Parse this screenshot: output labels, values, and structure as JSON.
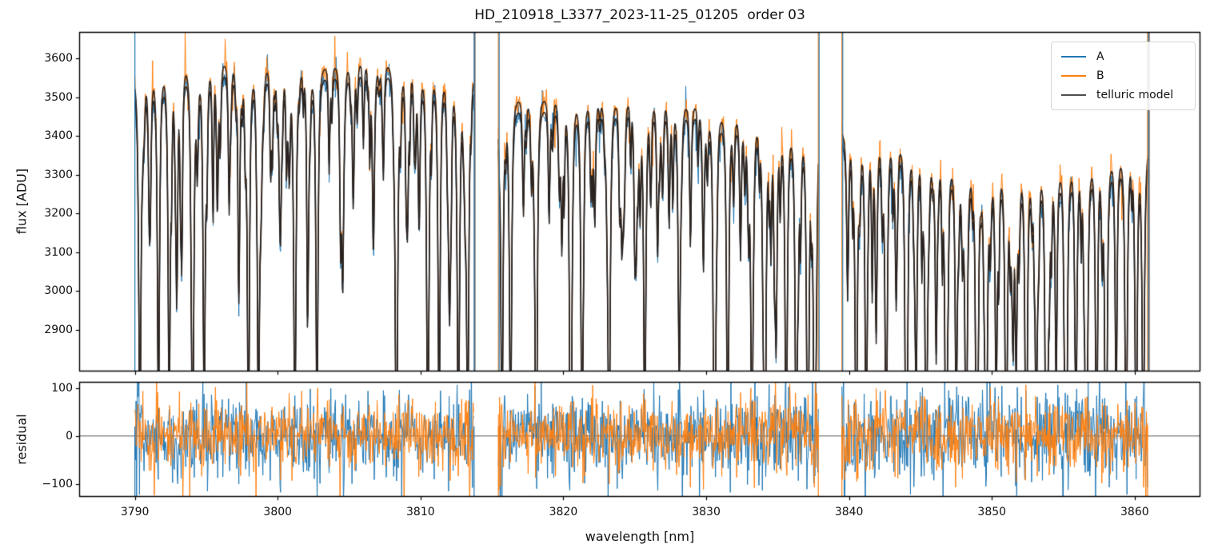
{
  "chart_data": {
    "type": "line",
    "title": "HD_210918_L3377_2023-11-25_01205  order 03",
    "xlabel": "wavelength [nm]",
    "xlim": [
      3786.1,
      3864.6
    ],
    "xticks": [
      3790,
      3800,
      3810,
      3820,
      3830,
      3840,
      3850,
      3860
    ],
    "panels": [
      {
        "ylabel": "flux [ADU]",
        "ylim": [
          2793,
          3668
        ],
        "yticks": [
          2900,
          3000,
          3100,
          3200,
          3300,
          3400,
          3500,
          3600
        ],
        "zeroline": false
      },
      {
        "ylabel": "residual",
        "ylim": [
          -127,
          113
        ],
        "yticks": [
          -100,
          0,
          100
        ],
        "zeroline": true
      }
    ],
    "legend": [
      {
        "label": "A",
        "color": "#1f77b4"
      },
      {
        "label": "B",
        "color": "#ff7f0e"
      },
      {
        "label": "telluric model",
        "color": "#4d4d4d"
      }
    ],
    "colors": {
      "A": "#1f77b4",
      "B": "#ff7f0e",
      "model_plot": "#2a2320",
      "zero_line": "#404040",
      "spine": "#000000"
    },
    "series_offsets": {
      "A": -14,
      "B": 14
    },
    "model_floor": 2520,
    "noise": {
      "flux_sigma": [
        20,
        20,
        26
      ],
      "flux_spike_p": 0.03,
      "residual_sigma_A": 36,
      "residual_sigma_B": 29,
      "residual_spike_p": 0.025
    },
    "weak_lines": {
      "spacing_nm": 0.32,
      "depth_range": [
        40,
        260
      ],
      "width_range": [
        0.05,
        0.09
      ],
      "seed": 777
    },
    "segments": [
      {
        "x_start": 3790.0,
        "x_end": 3813.75,
        "continuum": [
          [
            3790.0,
            3545
          ],
          [
            3791.5,
            3565
          ],
          [
            3793.5,
            3585
          ],
          [
            3795.5,
            3590
          ],
          [
            3797.5,
            3580
          ],
          [
            3800.5,
            3582
          ],
          [
            3803.0,
            3575
          ],
          [
            3806.0,
            3590
          ],
          [
            3808.0,
            3585
          ],
          [
            3810.0,
            3570
          ],
          [
            3812.0,
            3560
          ],
          [
            3813.75,
            3550
          ]
        ],
        "major_lines": [
          [
            3790.35,
            950,
            0.1
          ],
          [
            3791.0,
            300,
            0.08
          ],
          [
            3791.65,
            900,
            0.1
          ],
          [
            3792.4,
            880,
            0.1
          ],
          [
            3793.3,
            250,
            0.07
          ],
          [
            3794.05,
            950,
            0.11
          ],
          [
            3794.85,
            900,
            0.1
          ],
          [
            3795.8,
            200,
            0.07
          ],
          [
            3796.6,
            350,
            0.08
          ],
          [
            3797.3,
            300,
            0.08
          ],
          [
            3797.95,
            950,
            0.1
          ],
          [
            3798.65,
            920,
            0.1
          ],
          [
            3799.5,
            250,
            0.07
          ],
          [
            3800.2,
            300,
            0.08
          ],
          [
            3801.2,
            950,
            0.11
          ],
          [
            3802.1,
            350,
            0.08
          ],
          [
            3802.75,
            930,
            0.1
          ],
          [
            3803.6,
            250,
            0.07
          ],
          [
            3804.55,
            530,
            0.1
          ],
          [
            3805.3,
            300,
            0.08
          ],
          [
            3806.0,
            200,
            0.07
          ],
          [
            3806.7,
            480,
            0.1
          ],
          [
            3807.4,
            260,
            0.08
          ],
          [
            3808.3,
            950,
            0.11
          ],
          [
            3809.1,
            300,
            0.08
          ],
          [
            3809.9,
            400,
            0.09
          ],
          [
            3810.5,
            950,
            0.1
          ],
          [
            3811.3,
            920,
            0.1
          ],
          [
            3812.0,
            350,
            0.08
          ],
          [
            3812.65,
            960,
            0.11
          ],
          [
            3813.3,
            940,
            0.1
          ]
        ]
      },
      {
        "x_start": 3815.45,
        "x_end": 3837.85,
        "continuum": [
          [
            3815.45,
            3490
          ],
          [
            3818.0,
            3495
          ],
          [
            3821.0,
            3498
          ],
          [
            3824.0,
            3495
          ],
          [
            3827.0,
            3488
          ],
          [
            3829.5,
            3475
          ],
          [
            3832.0,
            3455
          ],
          [
            3834.5,
            3435
          ],
          [
            3836.5,
            3420
          ],
          [
            3837.85,
            3415
          ]
        ],
        "major_lines": [
          [
            3815.7,
            900,
            0.1
          ],
          [
            3816.3,
            850,
            0.1
          ],
          [
            3817.2,
            280,
            0.08
          ],
          [
            3818.1,
            920,
            0.1
          ],
          [
            3819.0,
            300,
            0.08
          ],
          [
            3819.9,
            350,
            0.08
          ],
          [
            3820.5,
            900,
            0.1
          ],
          [
            3821.3,
            880,
            0.1
          ],
          [
            3822.2,
            300,
            0.08
          ],
          [
            3823.2,
            930,
            0.11
          ],
          [
            3824.1,
            300,
            0.08
          ],
          [
            3825.0,
            350,
            0.08
          ],
          [
            3825.7,
            900,
            0.1
          ],
          [
            3826.6,
            320,
            0.08
          ],
          [
            3827.4,
            300,
            0.08
          ],
          [
            3828.1,
            560,
            0.1
          ],
          [
            3828.9,
            350,
            0.08
          ],
          [
            3829.8,
            400,
            0.09
          ],
          [
            3830.6,
            920,
            0.1
          ],
          [
            3831.5,
            880,
            0.1
          ],
          [
            3832.4,
            350,
            0.08
          ],
          [
            3833.2,
            900,
            0.1
          ],
          [
            3834.1,
            880,
            0.1
          ],
          [
            3834.9,
            500,
            0.09
          ],
          [
            3835.6,
            920,
            0.1
          ],
          [
            3836.3,
            880,
            0.1
          ],
          [
            3837.1,
            900,
            0.1
          ],
          [
            3837.6,
            850,
            0.09
          ]
        ]
      },
      {
        "x_start": 3839.5,
        "x_end": 3860.9,
        "continuum": [
          [
            3839.5,
            3400
          ],
          [
            3841.5,
            3405
          ],
          [
            3843.5,
            3390
          ],
          [
            3845.5,
            3360
          ],
          [
            3847.5,
            3330
          ],
          [
            3849.5,
            3315
          ],
          [
            3851.5,
            3320
          ],
          [
            3853.5,
            3320
          ],
          [
            3855.5,
            3325
          ],
          [
            3857.5,
            3340
          ],
          [
            3859.5,
            3360
          ],
          [
            3860.9,
            3375
          ]
        ],
        "major_lines": [
          [
            3839.9,
            400,
            0.09
          ],
          [
            3840.5,
            900,
            0.1
          ],
          [
            3841.2,
            850,
            0.1
          ],
          [
            3841.9,
            500,
            0.09
          ],
          [
            3842.6,
            880,
            0.1
          ],
          [
            3843.3,
            400,
            0.09
          ],
          [
            3844.0,
            900,
            0.1
          ],
          [
            3844.7,
            600,
            0.09
          ],
          [
            3845.4,
            880,
            0.1
          ],
          [
            3846.1,
            500,
            0.09
          ],
          [
            3846.8,
            900,
            0.1
          ],
          [
            3847.5,
            650,
            0.09
          ],
          [
            3848.2,
            880,
            0.1
          ],
          [
            3848.9,
            550,
            0.09
          ],
          [
            3849.6,
            900,
            0.1
          ],
          [
            3850.3,
            600,
            0.09
          ],
          [
            3851.0,
            880,
            0.1
          ],
          [
            3851.7,
            500,
            0.09
          ],
          [
            3852.4,
            900,
            0.1
          ],
          [
            3853.1,
            650,
            0.09
          ],
          [
            3853.8,
            880,
            0.1
          ],
          [
            3854.5,
            550,
            0.09
          ],
          [
            3855.2,
            900,
            0.1
          ],
          [
            3855.9,
            600,
            0.09
          ],
          [
            3856.6,
            880,
            0.1
          ],
          [
            3857.3,
            500,
            0.09
          ],
          [
            3858.0,
            900,
            0.1
          ],
          [
            3858.7,
            650,
            0.09
          ],
          [
            3859.4,
            880,
            0.1
          ],
          [
            3860.1,
            700,
            0.1
          ],
          [
            3860.6,
            850,
            0.1
          ]
        ]
      }
    ],
    "boundary_verticals": [
      {
        "x": 3790.0,
        "series": [
          "A"
        ]
      },
      {
        "x": 3813.75,
        "series": [
          "A",
          "model"
        ]
      },
      {
        "x": 3815.45,
        "series": [
          "B",
          "A"
        ]
      },
      {
        "x": 3837.85,
        "series": [
          "B",
          "A"
        ]
      },
      {
        "x": 3839.5,
        "series": [
          "B",
          "A"
        ]
      },
      {
        "x": 3860.9,
        "series": [
          "B",
          "A",
          "model"
        ]
      }
    ]
  }
}
